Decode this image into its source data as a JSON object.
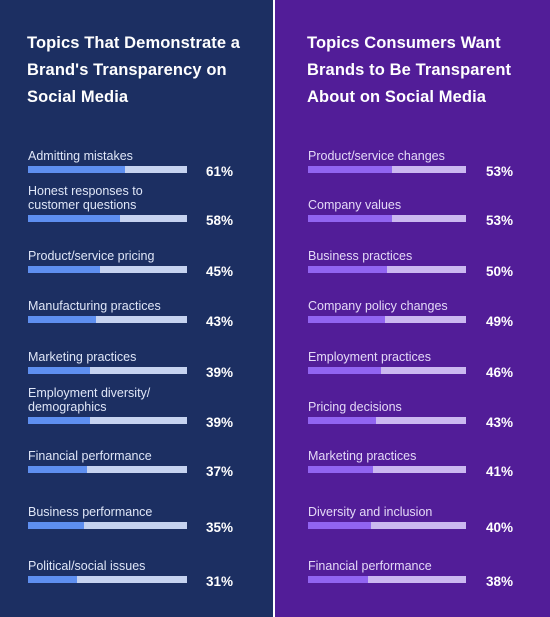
{
  "chart_data": [
    {
      "type": "bar",
      "title": "Topics That Demonstrate a Brand's Transparency on Social Media",
      "categories": [
        "Admitting mistakes",
        "Honest responses to customer questions",
        "Product/service pricing",
        "Manufacturing practices",
        "Marketing practices",
        "Employment diversity/ demographics",
        "Financial performance",
        "Business performance",
        "Political/social issues"
      ],
      "values": [
        61,
        58,
        45,
        43,
        39,
        39,
        37,
        35,
        31
      ],
      "value_labels": [
        "61%",
        "58%",
        "45%",
        "43%",
        "39%",
        "39%",
        "37%",
        "35%",
        "31%"
      ],
      "xlim": [
        0,
        100
      ],
      "colors": {
        "fill": "#5e8ff0",
        "track": "#c6d3f0",
        "background": "#1c2f62"
      }
    },
    {
      "type": "bar",
      "title": "Topics Consumers Want Brands to Be Transparent About on Social Media",
      "categories": [
        "Product/service changes",
        "Company values",
        "Business practices",
        "Company policy changes",
        "Employment practices",
        "Pricing decisions",
        "Marketing practices",
        "Diversity and inclusion",
        "Financial performance"
      ],
      "values": [
        53,
        53,
        50,
        49,
        46,
        43,
        41,
        40,
        38
      ],
      "value_labels": [
        "53%",
        "53%",
        "50%",
        "49%",
        "46%",
        "43%",
        "41%",
        "40%",
        "38%"
      ],
      "xlim": [
        0,
        100
      ],
      "colors": {
        "fill": "#9164f1",
        "track": "#cbb8f0",
        "background": "#521d98"
      }
    }
  ]
}
